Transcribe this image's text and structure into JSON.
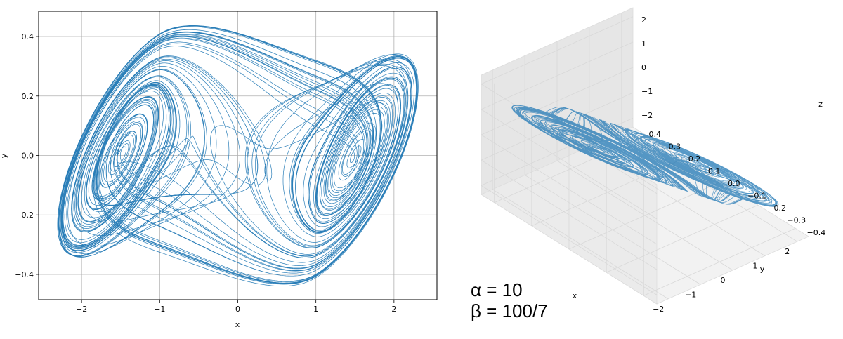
{
  "chart_data": [
    {
      "type": "line",
      "subtype": "2d-phase-portrait",
      "series_color": "#1f77b4",
      "xlabel": "x",
      "ylabel": "y",
      "xlim": [
        -2.55,
        2.55
      ],
      "ylim": [
        -0.485,
        0.485
      ],
      "xticks": [
        -2,
        -1,
        0,
        1,
        2
      ],
      "xtick_labels": [
        "−2",
        "−1",
        "0",
        "1",
        "2"
      ],
      "yticks": [
        -0.4,
        -0.2,
        0.0,
        0.2,
        0.4
      ],
      "ytick_labels": [
        "−0.4",
        "−0.2",
        "0.0",
        "0.2",
        "0.4"
      ],
      "grid": true,
      "attractor_centers": [
        [
          -1.5,
          0.0
        ],
        [
          1.5,
          0.0
        ]
      ],
      "data_extent": {
        "x": [
          -2.35,
          2.35
        ],
        "y": [
          -0.44,
          0.44
        ]
      }
    },
    {
      "type": "line",
      "subtype": "3d-phase-portrait",
      "series_color": "#1f77b4",
      "xlabel": "x",
      "ylabel": "y",
      "zlabel": "z",
      "xtick_labels": [
        "−2",
        "−1",
        "0",
        "1",
        "2"
      ],
      "ytick_labels": [
        "−0.4",
        "−0.3",
        "−0.2",
        "−0.1",
        "0.0",
        "0.1",
        "0.2",
        "0.3",
        "0.4"
      ],
      "ztick_labels": [
        "−2",
        "−1",
        "0",
        "1",
        "2"
      ],
      "grid": true
    }
  ],
  "params": {
    "alpha": "α = 10",
    "beta": "β = 100/7"
  }
}
